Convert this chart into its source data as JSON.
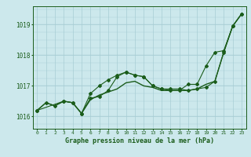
{
  "title": "Graphe pression niveau de la mer (hPa)",
  "background_color": "#cce8ec",
  "plot_bg_color": "#cce8ec",
  "grid_color": "#a8cdd4",
  "line_color": "#1a5c1a",
  "marker_color": "#1a5c1a",
  "text_color": "#1a5c1a",
  "xlim": [
    -0.5,
    23.5
  ],
  "ylim": [
    1015.6,
    1019.6
  ],
  "yticks": [
    1016,
    1017,
    1018,
    1019
  ],
  "xticks": [
    0,
    1,
    2,
    3,
    4,
    5,
    6,
    7,
    8,
    9,
    10,
    11,
    12,
    13,
    14,
    15,
    16,
    17,
    18,
    19,
    20,
    21,
    22,
    23
  ],
  "series1_x": [
    0,
    1,
    2,
    3,
    4,
    5,
    6,
    7,
    8,
    9,
    10,
    11,
    12,
    13,
    14,
    15,
    16,
    17,
    18,
    19,
    20,
    21,
    22,
    23
  ],
  "series1_y": [
    1016.2,
    1016.45,
    1016.35,
    1016.5,
    1016.45,
    1016.1,
    1016.55,
    1016.7,
    1016.8,
    1016.9,
    1017.1,
    1017.15,
    1017.0,
    1016.95,
    1016.85,
    1016.85,
    1016.85,
    1016.85,
    1016.9,
    1017.05,
    1017.15,
    1018.1,
    1018.95,
    1019.35
  ],
  "series2_x": [
    0,
    1,
    2,
    3,
    4,
    5,
    6,
    7,
    8,
    9,
    10,
    11,
    12,
    13,
    14,
    15,
    16,
    17,
    18,
    19,
    20,
    21,
    22,
    23
  ],
  "series2_y": [
    1016.2,
    1016.45,
    1016.35,
    1016.5,
    1016.45,
    1016.1,
    1016.75,
    1017.0,
    1017.2,
    1017.35,
    1017.45,
    1017.35,
    1017.3,
    1017.0,
    1016.9,
    1016.85,
    1016.85,
    1017.05,
    1017.05,
    1017.65,
    1018.1,
    1018.15,
    1018.95,
    1019.35
  ],
  "series3_x": [
    0,
    3,
    4,
    5,
    6,
    7,
    8,
    9,
    10,
    11,
    12,
    13,
    14,
    15,
    16,
    17,
    18,
    19,
    20,
    21,
    22,
    23
  ],
  "series3_y": [
    1016.2,
    1016.5,
    1016.45,
    1016.1,
    1016.6,
    1016.65,
    1016.85,
    1017.3,
    1017.45,
    1017.35,
    1017.3,
    1017.0,
    1016.9,
    1016.9,
    1016.9,
    1016.85,
    1016.9,
    1016.95,
    1017.15,
    1018.1,
    1018.95,
    1019.35
  ]
}
